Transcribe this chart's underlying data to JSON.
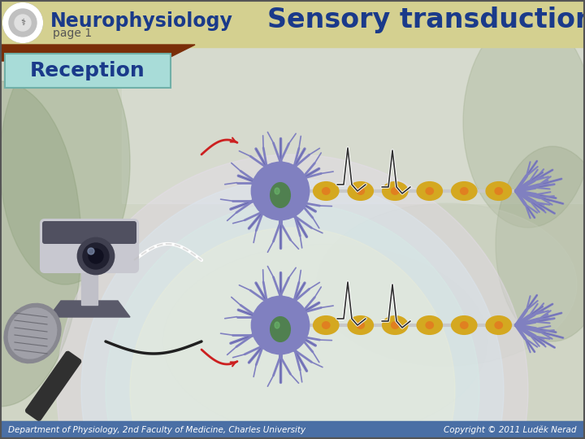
{
  "title": "Sensory transduction",
  "header_title": "Neurophysiology",
  "header_subtitle": "page 1",
  "reception_label": "Reception",
  "footer_left_text": "Department of Physiology, 2nd Faculty of Medicine, Charles University",
  "footer_right_text": "Copyright © 2011 Luděk Nerad",
  "header_bar_color": "#d4d090",
  "header_title_color": "#1a3a8a",
  "header_subtitle_color": "#555555",
  "title_color": "#1a3a8a",
  "reception_bg": "#a8dcd8",
  "reception_text_color": "#1a3a8a",
  "brown_bar_color": "#7a2e08",
  "footer_bg": "#4a6fa5",
  "footer_text_color": "#ffffff",
  "bg_main": "#c8ceb8",
  "neuron_body_color": "#8080c0",
  "neuron_edge_color": "#404090",
  "neuron_nucleus_color": "#508050",
  "myelin_color": "#d4a820",
  "myelin_edge_color": "#a07810",
  "axon_color": "#c8c8c8",
  "dendrite_color": "#8080c0",
  "spike_color": "#202020",
  "red_curve_color": "#cc2020",
  "right_dendrite_color": "#8080c0",
  "figsize": [
    7.2,
    5.4
  ],
  "dpi": 100
}
